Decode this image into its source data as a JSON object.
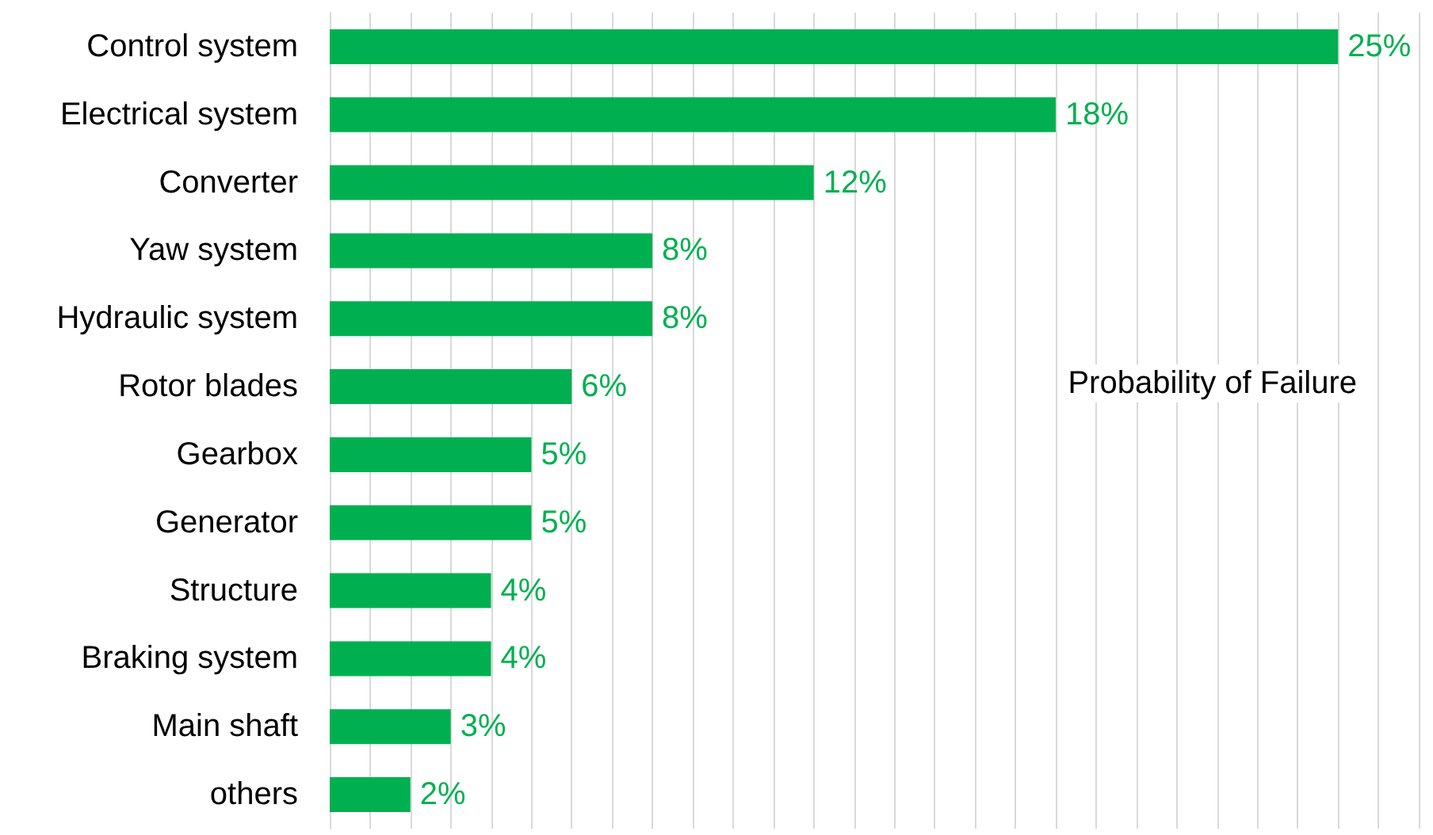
{
  "chart_data": {
    "type": "bar",
    "orientation": "horizontal",
    "categories": [
      "Control system",
      "Electrical system",
      "Converter",
      "Yaw system",
      "Hydraulic system",
      "Rotor blades",
      "Gearbox",
      "Generator",
      "Structure",
      "Braking system",
      "Main shaft",
      "others"
    ],
    "values": [
      25,
      18,
      12,
      8,
      8,
      6,
      5,
      5,
      4,
      4,
      3,
      2
    ],
    "value_labels": [
      "25%",
      "18%",
      "12%",
      "8%",
      "8%",
      "6%",
      "5%",
      "5%",
      "4%",
      "4%",
      "3%",
      "2%"
    ],
    "color": "#00b050",
    "xlim": [
      0,
      27
    ],
    "xticks": [
      {
        "value": 0,
        "label": null
      },
      {
        "value": 1,
        "label": null
      },
      {
        "value": 2,
        "label": null
      },
      {
        "value": 3,
        "label": null
      },
      {
        "value": 4,
        "label": null
      },
      {
        "value": 5,
        "label": null
      },
      {
        "value": 6,
        "label": null
      },
      {
        "value": 7,
        "label": null
      },
      {
        "value": 8,
        "label": null
      },
      {
        "value": 9,
        "label": null
      },
      {
        "value": 10,
        "label": null
      },
      {
        "value": 11,
        "label": null
      },
      {
        "value": 12,
        "label": null
      },
      {
        "value": 13,
        "label": null
      },
      {
        "value": 14,
        "label": null
      },
      {
        "value": 15,
        "label": null
      },
      {
        "value": 16,
        "label": null
      },
      {
        "value": 17,
        "label": null
      },
      {
        "value": 18,
        "label": null
      },
      {
        "value": 19,
        "label": null
      },
      {
        "value": 20,
        "label": null
      },
      {
        "value": 21,
        "label": null
      },
      {
        "value": 22,
        "label": null
      },
      {
        "value": 23,
        "label": null
      },
      {
        "value": 24,
        "label": null
      },
      {
        "value": 25,
        "label": null
      },
      {
        "value": 26,
        "label": null
      },
      {
        "value": 27,
        "label": null
      }
    ],
    "grid": "x",
    "tick_labels": "y",
    "annotations": [
      "Probability of Failure"
    ]
  }
}
